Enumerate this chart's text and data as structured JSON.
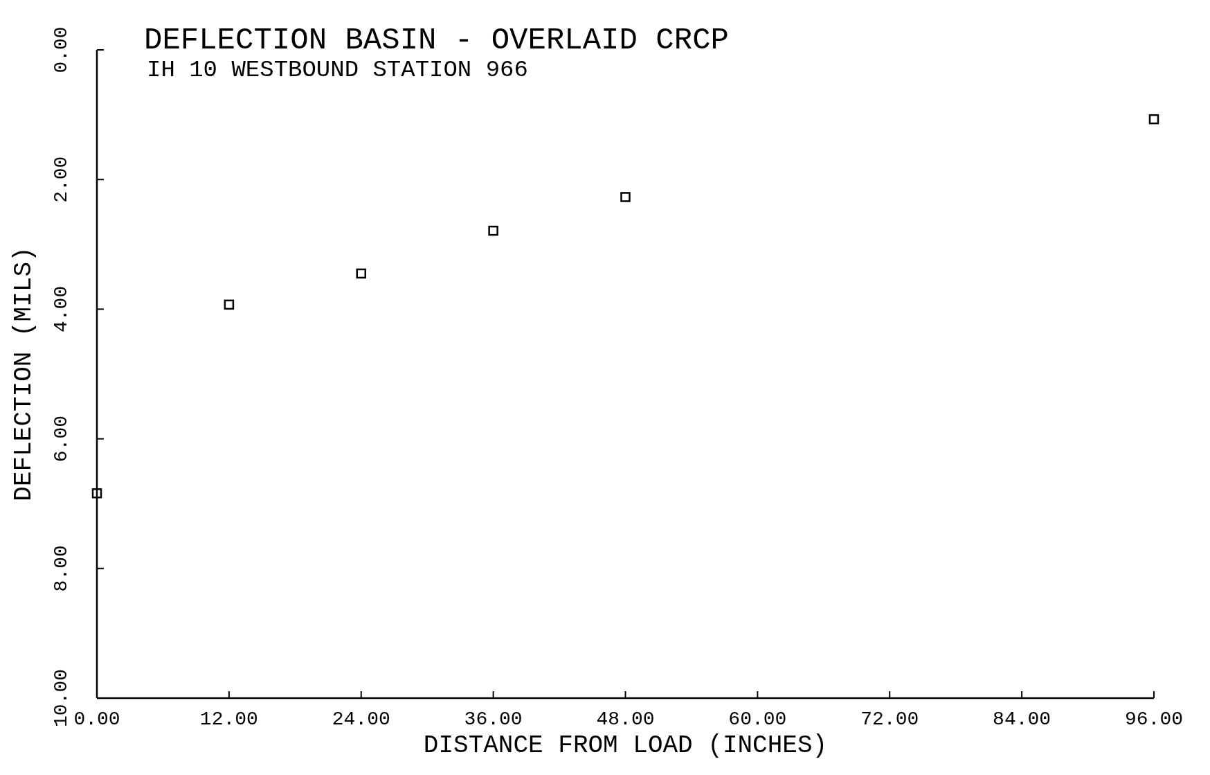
{
  "chart_data": {
    "type": "scatter",
    "title": "DEFLECTION BASIN  - OVERLAID CRCP",
    "subtitle": "IH 10 WESTBOUND STATION 966",
    "xlabel": "DISTANCE FROM LOAD (INCHES)",
    "ylabel": "DEFLECTION (MILS)",
    "x": [
      0,
      12,
      24,
      36,
      48,
      96
    ],
    "values": [
      6.84,
      3.93,
      3.45,
      2.79,
      2.27,
      1.07
    ],
    "color": "#000000",
    "marker": "square",
    "grid": false,
    "xlim": [
      0,
      96
    ],
    "xticks": [
      {
        "value": 0,
        "label": "0.00"
      },
      {
        "value": 12,
        "label": "12.00"
      },
      {
        "value": 24,
        "label": "24.00"
      },
      {
        "value": 36,
        "label": "36.00"
      },
      {
        "value": 48,
        "label": "48.00"
      },
      {
        "value": 60,
        "label": "60.00"
      },
      {
        "value": 72,
        "label": "72.00"
      },
      {
        "value": 84,
        "label": "84.00"
      },
      {
        "value": 96,
        "label": "96.00"
      }
    ],
    "ylim": [
      10,
      0
    ],
    "yticks": [
      {
        "value": 0,
        "label": "0.00"
      },
      {
        "value": 2,
        "label": "2.00"
      },
      {
        "value": 4,
        "label": "4.00"
      },
      {
        "value": 6,
        "label": "6.00"
      },
      {
        "value": 8,
        "label": "8.00"
      },
      {
        "value": 10,
        "label": "10.00"
      }
    ]
  }
}
